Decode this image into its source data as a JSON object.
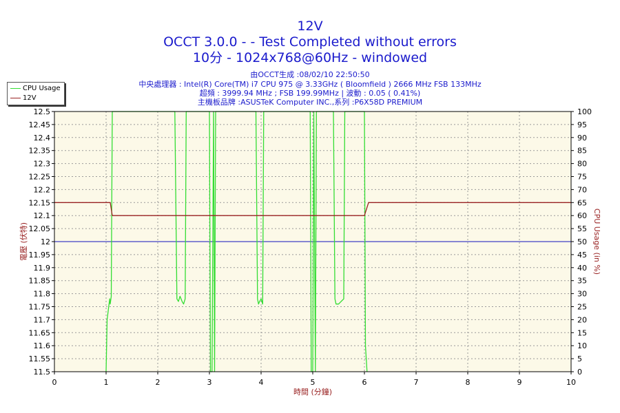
{
  "header": {
    "title": "12V",
    "subtitle": "OCCT 3.0.0 -  - Test Completed without errors",
    "test_info": "10分 - 1024x768@60Hz - windowed"
  },
  "info": {
    "generated": "由OCCT生成 :08/02/10 22:50:50",
    "cpu": "中央處理器 : Intel(R) Core(TM) i7 CPU 975 @ 3.33GHz ( Bloomfield ) 2666 MHz FSB 133MHz",
    "overclock": "超頻 : 3999.94 MHz ; FSB 199.99MHz | 波動 : 0.05 ( 0.41%)",
    "motherboard": "主機板品牌 :ASUSTeK Computer INC.,系列 :P6X58D PREMIUM"
  },
  "colors": {
    "plot_bg": "#fcf9e8",
    "cpu_line": "#33dd33",
    "voltage_line": "#992222",
    "reference_line": "#1111bb",
    "axis_label": "#992222",
    "grid": "#999999"
  },
  "chart_data": {
    "type": "line",
    "xlabel": "時間 (分鐘)",
    "ylabel_left": "電壓 (伏特)",
    "ylabel_right": "CPU Usage (in %)",
    "xlim": [
      0,
      10
    ],
    "ylim_left": [
      11.5,
      12.5
    ],
    "ylim_right": [
      0,
      100
    ],
    "x_ticks": [
      "0",
      "1",
      "2",
      "3",
      "4",
      "5",
      "6",
      "7",
      "8",
      "9",
      "10"
    ],
    "y_ticks_left": [
      "11.5",
      "11.55",
      "11.6",
      "11.65",
      "11.7",
      "11.75",
      "11.8",
      "11.85",
      "11.9",
      "11.95",
      "12",
      "12.05",
      "12.1",
      "12.15",
      "12.2",
      "12.25",
      "12.3",
      "12.35",
      "12.4",
      "12.45",
      "12.5"
    ],
    "y_ticks_right": [
      "0",
      "5",
      "10",
      "15",
      "20",
      "25",
      "30",
      "35",
      "40",
      "45",
      "50",
      "55",
      "60",
      "65",
      "70",
      "75",
      "80",
      "85",
      "90",
      "95",
      "100"
    ],
    "grid": true,
    "legend_position": "top-left",
    "reference_line_value": 12.0,
    "series": [
      {
        "name": "CPU Usage",
        "axis": "right",
        "x": [
          1.0,
          1.02,
          1.05,
          1.07,
          1.08,
          1.1,
          1.12,
          1.15,
          1.17,
          2.33,
          2.37,
          2.4,
          2.43,
          2.47,
          2.5,
          2.53,
          2.55,
          2.6,
          3.0,
          3.02,
          3.05,
          3.08,
          3.1,
          3.12,
          3.9,
          3.93,
          3.95,
          3.97,
          4.0,
          4.03,
          4.05,
          4.08,
          4.95,
          4.97,
          5.0,
          5.02,
          5.05,
          5.07,
          5.4,
          5.43,
          5.45,
          5.5,
          5.55,
          5.6,
          5.62,
          6.0,
          6.02,
          6.05
        ],
        "values": [
          0,
          20,
          25,
          28,
          26,
          29,
          100,
          100,
          100,
          100,
          28,
          27,
          29,
          27,
          26,
          28,
          100,
          100,
          100,
          0,
          0,
          100,
          0,
          100,
          100,
          28,
          26,
          27,
          28,
          26,
          100,
          100,
          100,
          0,
          0,
          100,
          0,
          100,
          100,
          28,
          26,
          26,
          27,
          28,
          100,
          100,
          10,
          0
        ]
      },
      {
        "name": "12V",
        "axis": "left",
        "x": [
          0,
          1.08,
          1.12,
          6.0,
          6.08,
          10
        ],
        "values": [
          12.15,
          12.15,
          12.1,
          12.1,
          12.15,
          12.15
        ]
      }
    ]
  }
}
